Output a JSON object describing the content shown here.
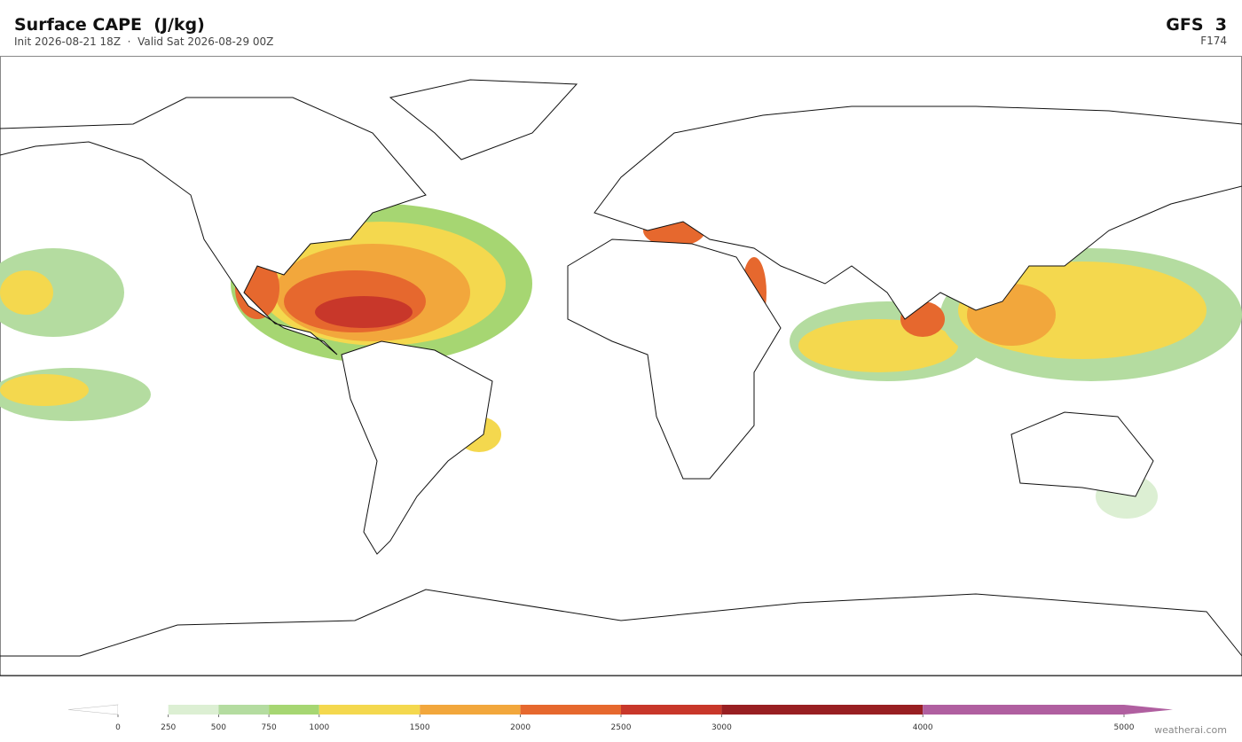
{
  "header": {
    "title": "Surface CAPE  (J/kg)",
    "subtitle": "Init 2026-08-21 18Z  ·  Valid Sat 2026-08-29 00Z",
    "model": "GFS  3",
    "forecast_hour": "F174"
  },
  "colorbar": {
    "ticks": [
      0,
      250,
      500,
      750,
      1000,
      1500,
      2000,
      2500,
      3000,
      4000,
      5000
    ],
    "colors": [
      "#ffffff",
      "#dcefd3",
      "#b4dca0",
      "#a6d672",
      "#f4d84e",
      "#f2a73c",
      "#e6682e",
      "#c8372a",
      "#981f22",
      "#b05fa0"
    ]
  },
  "footer": {
    "credit": "weatherai.com"
  }
}
